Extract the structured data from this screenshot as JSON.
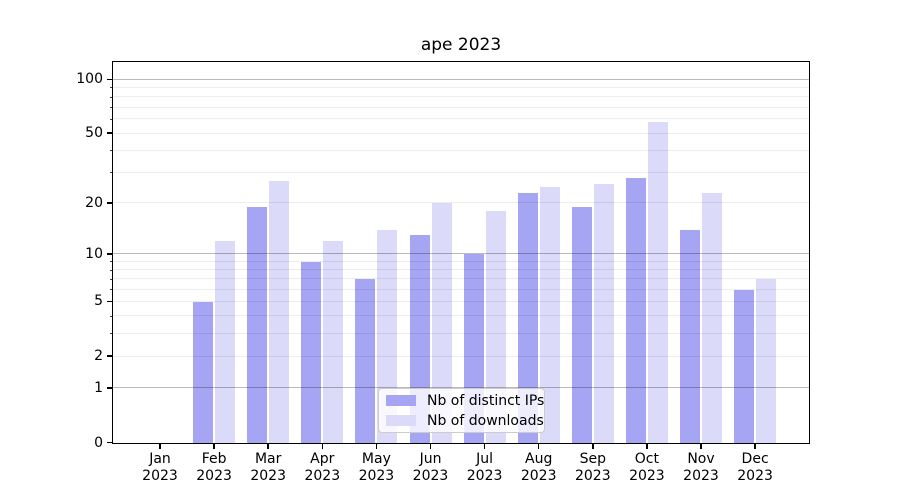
{
  "chart_data": {
    "type": "bar",
    "title": "ape 2023",
    "categories": [
      "Jan",
      "Feb",
      "Mar",
      "Apr",
      "May",
      "Jun",
      "Jul",
      "Aug",
      "Sep",
      "Oct",
      "Nov",
      "Dec"
    ],
    "year_label": "2023",
    "series": [
      {
        "name": "Nb of distinct IPs",
        "color": "#a5a5f3",
        "values": [
          0,
          5,
          19,
          9,
          7,
          13,
          10,
          23,
          19,
          28,
          14,
          6
        ]
      },
      {
        "name": "Nb of downloads",
        "color": "#dbdbf9",
        "values": [
          0,
          12,
          27,
          12,
          14,
          20,
          18,
          25,
          26,
          58,
          23,
          7
        ]
      }
    ],
    "xlabel": "",
    "ylabel": "",
    "yscale": "log10(value+1)",
    "ylim": [
      0,
      124
    ],
    "ytick_labels": [
      "0",
      "1",
      "2",
      "5",
      "10",
      "20",
      "50",
      "100"
    ],
    "yticks": [
      0,
      1,
      2,
      5,
      10,
      20,
      50,
      100
    ],
    "major_gridlines": [
      1,
      10,
      100
    ],
    "minor_gridlines": [
      2,
      3,
      4,
      5,
      6,
      7,
      8,
      9,
      20,
      30,
      40,
      50,
      60,
      70,
      80,
      90
    ],
    "grid": true,
    "legend_position": "lower center"
  }
}
